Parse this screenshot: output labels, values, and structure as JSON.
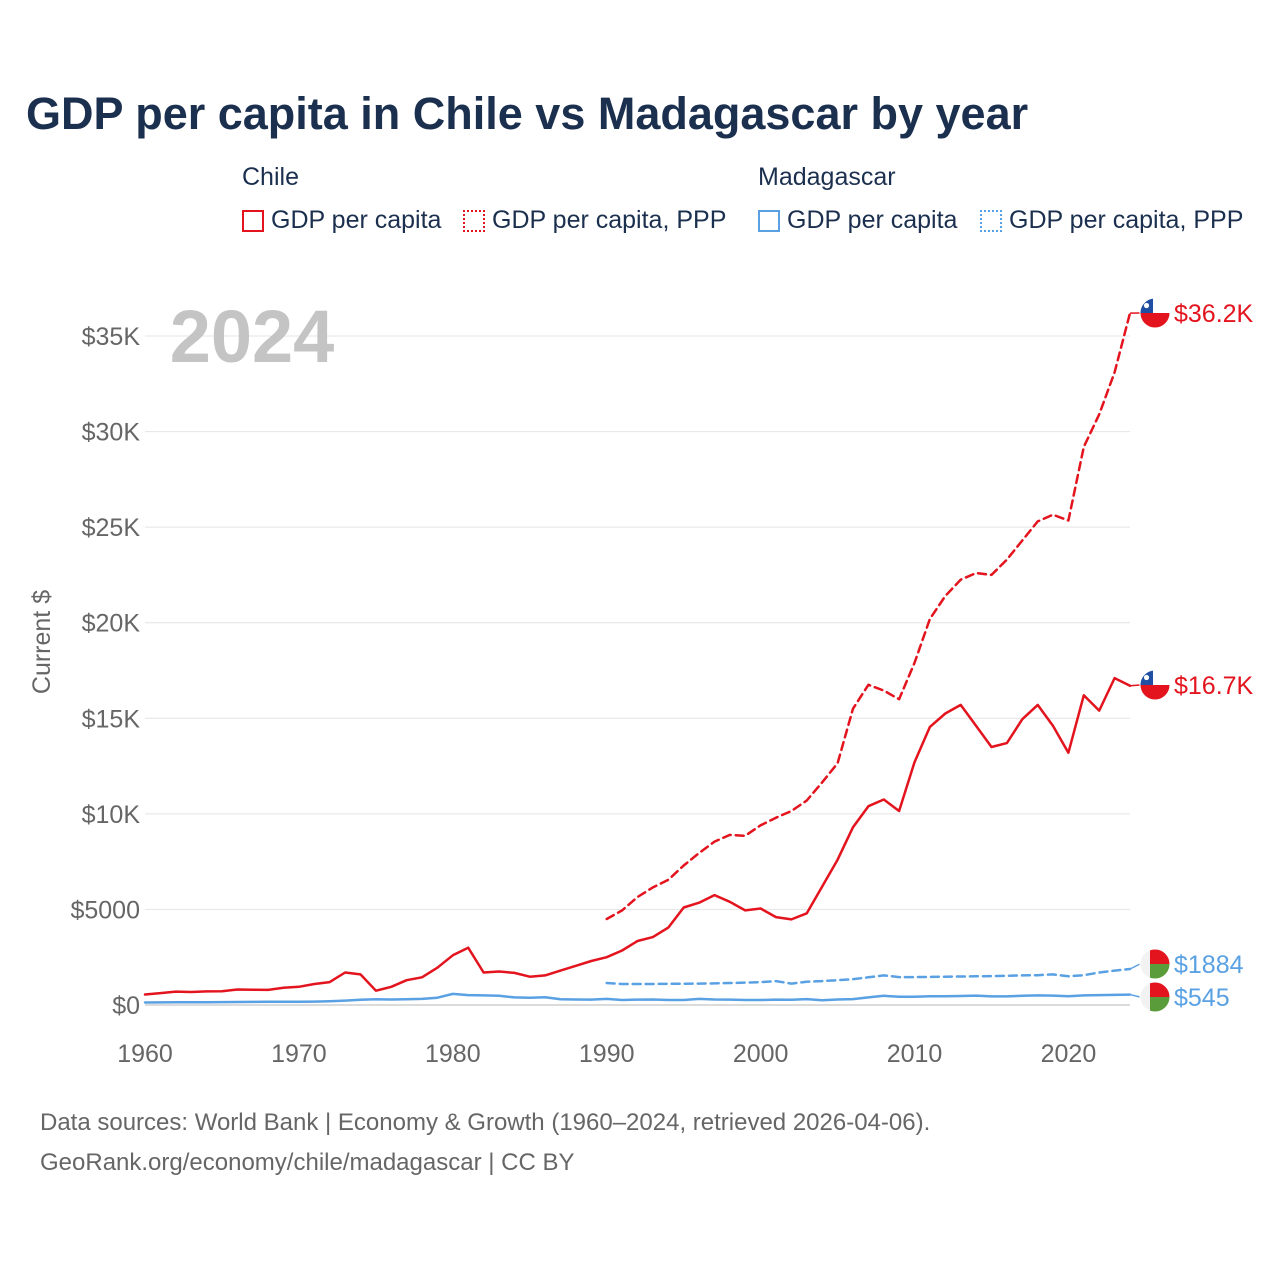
{
  "title": "GDP per capita in Chile vs Madagascar by year",
  "legend": {
    "groups": [
      {
        "country": "Chile",
        "color": "#e3141e",
        "items": [
          {
            "label": "GDP per capita",
            "style": "solid"
          },
          {
            "label": "GDP per capita, PPP",
            "style": "dotted"
          }
        ]
      },
      {
        "country": "Madagascar",
        "color": "#5aa1e3",
        "items": [
          {
            "label": "GDP per capita",
            "style": "solid"
          },
          {
            "label": "GDP per capita, PPP",
            "style": "dotted"
          }
        ]
      }
    ]
  },
  "footer": {
    "line1": "Data sources: World Bank | Economy & Growth (1960–2024, retrieved 2026-04-06).",
    "line2": "GeoRank.org/economy/chile/madagascar | CC BY"
  },
  "chart_data": {
    "type": "line",
    "title": "GDP per capita in Chile vs Madagascar by year",
    "ylabel": "Current $",
    "xlabel": "",
    "year_label": "2024",
    "xlim": [
      1960,
      2024
    ],
    "ylim": [
      0,
      37000
    ],
    "x_ticks": [
      1960,
      1970,
      1980,
      1990,
      2000,
      2010,
      2020
    ],
    "y_ticks": [
      {
        "value": 0,
        "label": "$0"
      },
      {
        "value": 5000,
        "label": "$5000"
      },
      {
        "value": 10000,
        "label": "$10K"
      },
      {
        "value": 15000,
        "label": "$15K"
      },
      {
        "value": 20000,
        "label": "$20K"
      },
      {
        "value": 25000,
        "label": "$25K"
      },
      {
        "value": 30000,
        "label": "$30K"
      },
      {
        "value": 35000,
        "label": "$35K"
      }
    ],
    "grid": true,
    "series": [
      {
        "name": "Chile GDP per capita",
        "country": "Chile",
        "color": "#e3141e",
        "dash": "solid",
        "end_label": "$16.7K",
        "flag": "chile",
        "x": [
          1960,
          1961,
          1962,
          1963,
          1964,
          1965,
          1966,
          1967,
          1968,
          1969,
          1970,
          1971,
          1972,
          1973,
          1974,
          1975,
          1976,
          1977,
          1978,
          1979,
          1980,
          1981,
          1982,
          1983,
          1984,
          1985,
          1986,
          1987,
          1988,
          1989,
          1990,
          1991,
          1992,
          1993,
          1994,
          1995,
          1996,
          1997,
          1998,
          1999,
          2000,
          2001,
          2002,
          2003,
          2004,
          2005,
          2006,
          2007,
          2008,
          2009,
          2010,
          2011,
          2012,
          2013,
          2014,
          2015,
          2016,
          2017,
          2018,
          2019,
          2020,
          2021,
          2022,
          2023,
          2024
        ],
        "values": [
          550,
          620,
          700,
          680,
          710,
          720,
          810,
          800,
          790,
          900,
          950,
          1100,
          1200,
          1700,
          1600,
          750,
          950,
          1300,
          1450,
          1950,
          2600,
          3000,
          1700,
          1750,
          1680,
          1480,
          1550,
          1800,
          2050,
          2300,
          2500,
          2850,
          3350,
          3550,
          4050,
          5100,
          5350,
          5750,
          5400,
          4950,
          5050,
          4600,
          4480,
          4800,
          6200,
          7600,
          9300,
          10400,
          10750,
          10150,
          12700,
          14550,
          15250,
          15700,
          14600,
          13500,
          13700,
          14950,
          15700,
          14600,
          13200,
          16200,
          15400,
          17100,
          16700
        ]
      },
      {
        "name": "Chile GDP per capita, PPP",
        "country": "Chile",
        "color": "#e3141e",
        "dash": "dashed",
        "end_label": "$36.2K",
        "flag": "chile",
        "x": [
          1990,
          1991,
          1992,
          1993,
          1994,
          1995,
          1996,
          1997,
          1998,
          1999,
          2000,
          2001,
          2002,
          2003,
          2004,
          2005,
          2006,
          2007,
          2008,
          2009,
          2010,
          2011,
          2012,
          2013,
          2014,
          2015,
          2016,
          2017,
          2018,
          2019,
          2020,
          2021,
          2022,
          2023,
          2024
        ],
        "values": [
          4500,
          4950,
          5650,
          6150,
          6550,
          7300,
          7950,
          8550,
          8900,
          8850,
          9400,
          9800,
          10150,
          10700,
          11650,
          12650,
          15500,
          16750,
          16450,
          16000,
          17900,
          20200,
          21400,
          22250,
          22600,
          22500,
          23300,
          24300,
          25300,
          25650,
          25350,
          29200,
          30900,
          33100,
          36200
        ]
      },
      {
        "name": "Madagascar GDP per capita",
        "country": "Madagascar",
        "color": "#5aa1e3",
        "dash": "solid",
        "end_label": "$545",
        "flag": "madagascar",
        "x": [
          1960,
          1961,
          1962,
          1963,
          1964,
          1965,
          1966,
          1967,
          1968,
          1969,
          1970,
          1971,
          1972,
          1973,
          1974,
          1975,
          1976,
          1977,
          1978,
          1979,
          1980,
          1981,
          1982,
          1983,
          1984,
          1985,
          1986,
          1987,
          1988,
          1989,
          1990,
          1991,
          1992,
          1993,
          1994,
          1995,
          1996,
          1997,
          1998,
          1999,
          2000,
          2001,
          2002,
          2003,
          2004,
          2005,
          2006,
          2007,
          2008,
          2009,
          2010,
          2011,
          2012,
          2013,
          2014,
          2015,
          2016,
          2017,
          2018,
          2019,
          2020,
          2021,
          2022,
          2023,
          2024
        ],
        "values": [
          130,
          135,
          140,
          145,
          145,
          150,
          155,
          160,
          165,
          170,
          175,
          180,
          200,
          230,
          270,
          300,
          290,
          300,
          320,
          380,
          580,
          520,
          500,
          480,
          400,
          380,
          410,
          300,
          290,
          280,
          320,
          260,
          280,
          290,
          260,
          260,
          320,
          290,
          280,
          260,
          260,
          280,
          270,
          310,
          250,
          290,
          310,
          400,
          480,
          430,
          430,
          460,
          460,
          470,
          490,
          450,
          450,
          480,
          500,
          490,
          460,
          500,
          520,
          530,
          545
        ]
      },
      {
        "name": "Madagascar GDP per capita, PPP",
        "country": "Madagascar",
        "color": "#5aa1e3",
        "dash": "dashed",
        "end_label": "$1884",
        "flag": "madagascar",
        "x": [
          1990,
          1991,
          1992,
          1993,
          1994,
          1995,
          1996,
          1997,
          1998,
          1999,
          2000,
          2001,
          2002,
          2003,
          2004,
          2005,
          2006,
          2007,
          2008,
          2009,
          2010,
          2011,
          2012,
          2013,
          2014,
          2015,
          2016,
          2017,
          2018,
          2019,
          2020,
          2021,
          2022,
          2023,
          2024
        ],
        "values": [
          1150,
          1100,
          1100,
          1100,
          1110,
          1110,
          1120,
          1130,
          1150,
          1170,
          1200,
          1250,
          1120,
          1220,
          1250,
          1300,
          1350,
          1450,
          1550,
          1460,
          1460,
          1470,
          1480,
          1490,
          1500,
          1510,
          1530,
          1550,
          1560,
          1600,
          1500,
          1560,
          1700,
          1800,
          1884
        ]
      }
    ]
  }
}
